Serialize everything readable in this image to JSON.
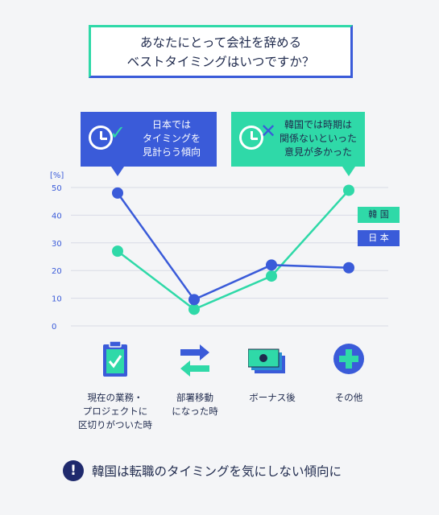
{
  "title": {
    "line1": "あなたにとって会社を辞める",
    "line2": "ベストタイミングはいつですか？"
  },
  "callouts": {
    "japan": {
      "line1": "日本では",
      "line2": "タイミングを",
      "line3": "見計らう傾向"
    },
    "korea": {
      "line1": "韓国では時期は",
      "line2": "関係ないといった",
      "line3": "意見が多かった"
    }
  },
  "legend": {
    "korea": "韓 国",
    "japan": "日 本"
  },
  "footer": {
    "icon": "!",
    "message": "韓国は転職のタイミングを気にしない傾向に"
  },
  "colors": {
    "japan": "#3a5bd9",
    "korea": "#2fd9a8",
    "text": "#1f2a4d"
  },
  "chart_data": {
    "type": "line",
    "ylabel": "[%]",
    "ylim": [
      0,
      50
    ],
    "yticks": [
      "0",
      "10",
      "20",
      "30",
      "40",
      "50"
    ],
    "categories": [
      "現在の業務・プロジェクトに区切りがついた時",
      "部署移動になった時",
      "ボーナス後",
      "その他"
    ],
    "category_lines": [
      [
        "現在の業務・",
        "プロジェクトに",
        "区切りがついた時"
      ],
      [
        "部署移動",
        "になった時"
      ],
      [
        "ボーナス後"
      ],
      [
        "その他"
      ]
    ],
    "category_icons": [
      "clipboard-check-icon",
      "swap-arrows-icon",
      "money-bills-icon",
      "plus-circle-icon"
    ],
    "series": [
      {
        "name": "日 本",
        "values": [
          48,
          9.5,
          22,
          21
        ]
      },
      {
        "name": "韓 国",
        "values": [
          27,
          6,
          18,
          49
        ]
      }
    ]
  }
}
